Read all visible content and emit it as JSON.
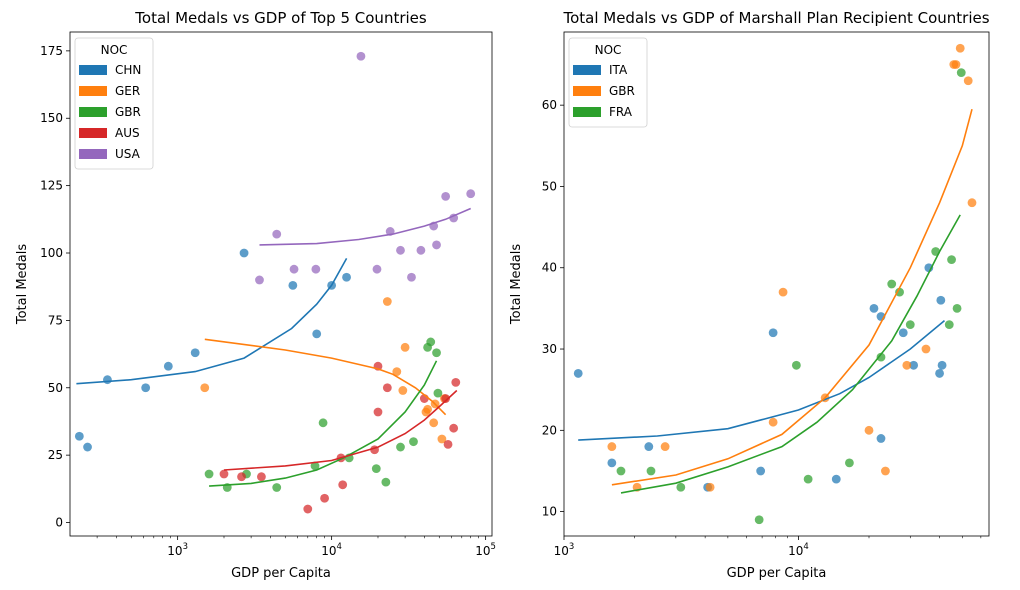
{
  "chart_data": [
    {
      "type": "scatter",
      "title": "Total Medals vs GDP of Top 5 Countries",
      "xlabel": "GDP per Capita",
      "ylabel": "Total Medals",
      "xscale": "log",
      "xlim": [
        200,
        110000
      ],
      "ylim": [
        -5,
        182
      ],
      "xticks": [
        {
          "value": 1000,
          "base": "10",
          "exp": "3"
        },
        {
          "value": 10000,
          "base": "10",
          "exp": "4"
        },
        {
          "value": 100000,
          "base": "10",
          "exp": "5"
        }
      ],
      "yticks": [
        0,
        25,
        50,
        75,
        100,
        125,
        150,
        175
      ],
      "legend": {
        "title": "NOC",
        "position": "top-left"
      },
      "series": [
        {
          "name": "CHN",
          "color": "#1f77b4",
          "points": [
            [
              230,
              32
            ],
            [
              260,
              28
            ],
            [
              350,
              53
            ],
            [
              620,
              50
            ],
            [
              870,
              58
            ],
            [
              1300,
              63
            ],
            [
              2700,
              100
            ],
            [
              5600,
              88
            ],
            [
              8000,
              70
            ],
            [
              10000,
              88
            ],
            [
              12500,
              91
            ]
          ],
          "trend": [
            [
              220,
              51.5
            ],
            [
              500,
              53
            ],
            [
              1300,
              56
            ],
            [
              2700,
              61
            ],
            [
              5500,
              72
            ],
            [
              8000,
              81
            ],
            [
              10000,
              88
            ],
            [
              12500,
              98
            ]
          ]
        },
        {
          "name": "GER",
          "color": "#ff7f0e",
          "points": [
            [
              1500,
              50
            ],
            [
              23000,
              82
            ],
            [
              26500,
              56
            ],
            [
              29000,
              49
            ],
            [
              30000,
              65
            ],
            [
              41000,
              41
            ],
            [
              42000,
              42
            ],
            [
              46000,
              37
            ],
            [
              47000,
              44
            ],
            [
              52000,
              31
            ],
            [
              54000,
              46
            ]
          ],
          "trend": [
            [
              1500,
              68
            ],
            [
              5000,
              64
            ],
            [
              10000,
              61
            ],
            [
              20000,
              57
            ],
            [
              25000,
              55
            ],
            [
              35000,
              50
            ],
            [
              45000,
              45
            ],
            [
              55000,
              40
            ]
          ]
        },
        {
          "name": "GBR",
          "color": "#2ca02c",
          "points": [
            [
              1600,
              18
            ],
            [
              2100,
              13
            ],
            [
              2800,
              18
            ],
            [
              4400,
              13
            ],
            [
              7800,
              21
            ],
            [
              8800,
              37
            ],
            [
              13000,
              24
            ],
            [
              19500,
              20
            ],
            [
              22500,
              15
            ],
            [
              28000,
              28
            ],
            [
              34000,
              30
            ],
            [
              42000,
              65
            ],
            [
              44000,
              67
            ],
            [
              48000,
              63
            ],
            [
              49000,
              48
            ]
          ],
          "trend": [
            [
              1600,
              13.5
            ],
            [
              3000,
              14.5
            ],
            [
              5000,
              16.5
            ],
            [
              8000,
              19.5
            ],
            [
              12000,
              24
            ],
            [
              20000,
              31
            ],
            [
              30000,
              41
            ],
            [
              40000,
              51
            ],
            [
              48000,
              60
            ]
          ]
        },
        {
          "name": "AUS",
          "color": "#d62728",
          "points": [
            [
              2000,
              18
            ],
            [
              2600,
              17
            ],
            [
              3500,
              17
            ],
            [
              7000,
              5
            ],
            [
              9000,
              9
            ],
            [
              11500,
              24
            ],
            [
              11800,
              14
            ],
            [
              19000,
              27
            ],
            [
              20000,
              58
            ],
            [
              20000,
              41
            ],
            [
              23000,
              50
            ],
            [
              40000,
              46
            ],
            [
              55000,
              46
            ],
            [
              57000,
              29
            ],
            [
              62000,
              35
            ],
            [
              64000,
              52
            ]
          ],
          "trend": [
            [
              2000,
              19.5
            ],
            [
              5000,
              21
            ],
            [
              10000,
              23
            ],
            [
              20000,
              28
            ],
            [
              30000,
              33
            ],
            [
              40000,
              38
            ],
            [
              50000,
              43
            ],
            [
              65000,
              49
            ]
          ]
        },
        {
          "name": "USA",
          "color": "#9467bd",
          "points": [
            [
              3400,
              90
            ],
            [
              4400,
              107
            ],
            [
              5700,
              94
            ],
            [
              7900,
              94
            ],
            [
              15500,
              173
            ],
            [
              19700,
              94
            ],
            [
              24000,
              108
            ],
            [
              28000,
              101
            ],
            [
              33000,
              91
            ],
            [
              38000,
              101
            ],
            [
              46000,
              110
            ],
            [
              48000,
              103
            ],
            [
              55000,
              121
            ],
            [
              62000,
              113
            ],
            [
              80000,
              122
            ]
          ],
          "trend": [
            [
              3400,
              103
            ],
            [
              8000,
              103.5
            ],
            [
              15000,
              105
            ],
            [
              25000,
              107
            ],
            [
              40000,
              110
            ],
            [
              55000,
              112.5
            ],
            [
              80000,
              116.5
            ]
          ]
        }
      ]
    },
    {
      "type": "scatter",
      "title": "Total Medals vs GDP of Marshall Plan Recipient Countries",
      "xlabel": "GDP per Capita",
      "ylabel": "Total Medals",
      "xscale": "log",
      "xlim": [
        1000,
        65000
      ],
      "ylim": [
        7,
        69
      ],
      "xticks": [
        {
          "value": 1000,
          "base": "10",
          "exp": "3"
        },
        {
          "value": 10000,
          "base": "10",
          "exp": "4"
        }
      ],
      "yticks": [
        10,
        20,
        30,
        40,
        50,
        60
      ],
      "legend": {
        "title": "NOC",
        "position": "top-left"
      },
      "series": [
        {
          "name": "ITA",
          "color": "#1f77b4",
          "points": [
            [
              1150,
              27
            ],
            [
              1600,
              16
            ],
            [
              2300,
              18
            ],
            [
              4100,
              13
            ],
            [
              6900,
              15
            ],
            [
              7800,
              32
            ],
            [
              14500,
              14
            ],
            [
              21000,
              35
            ],
            [
              22500,
              34
            ],
            [
              22500,
              19
            ],
            [
              28000,
              32
            ],
            [
              31000,
              28
            ],
            [
              36000,
              40
            ],
            [
              40000,
              27
            ],
            [
              40500,
              36
            ],
            [
              41000,
              28
            ]
          ],
          "trend": [
            [
              1150,
              18.8
            ],
            [
              2500,
              19.3
            ],
            [
              5000,
              20.2
            ],
            [
              10000,
              22.5
            ],
            [
              15000,
              24.5
            ],
            [
              20000,
              26.5
            ],
            [
              30000,
              30
            ],
            [
              42000,
              33.5
            ]
          ]
        },
        {
          "name": "GBR",
          "color": "#ff7f0e",
          "points": [
            [
              1600,
              18
            ],
            [
              2050,
              13
            ],
            [
              2700,
              18
            ],
            [
              4200,
              13
            ],
            [
              7800,
              21
            ],
            [
              8600,
              37
            ],
            [
              13000,
              24
            ],
            [
              20000,
              20
            ],
            [
              23500,
              15
            ],
            [
              29000,
              28
            ],
            [
              35000,
              30
            ],
            [
              46000,
              65
            ],
            [
              47000,
              65
            ],
            [
              49000,
              67
            ],
            [
              53000,
              63
            ],
            [
              55000,
              48
            ]
          ],
          "trend": [
            [
              1600,
              13.3
            ],
            [
              3000,
              14.5
            ],
            [
              5000,
              16.5
            ],
            [
              8500,
              19.5
            ],
            [
              13000,
              24
            ],
            [
              20000,
              30.5
            ],
            [
              30000,
              40
            ],
            [
              40000,
              48
            ],
            [
              50000,
              55
            ],
            [
              55000,
              59.5
            ]
          ]
        },
        {
          "name": "FRA",
          "color": "#2ca02c",
          "points": [
            [
              1750,
              15
            ],
            [
              2350,
              15
            ],
            [
              3150,
              13
            ],
            [
              6800,
              9
            ],
            [
              9800,
              28
            ],
            [
              11000,
              14
            ],
            [
              16500,
              16
            ],
            [
              22500,
              29
            ],
            [
              25000,
              38
            ],
            [
              27000,
              37
            ],
            [
              30000,
              33
            ],
            [
              38500,
              42
            ],
            [
              44000,
              33
            ],
            [
              45000,
              41
            ],
            [
              47500,
              35
            ],
            [
              49500,
              64
            ]
          ],
          "trend": [
            [
              1750,
              12.3
            ],
            [
              3000,
              13.5
            ],
            [
              5000,
              15.5
            ],
            [
              8500,
              18
            ],
            [
              12000,
              21
            ],
            [
              17000,
              25
            ],
            [
              25000,
              31
            ],
            [
              32000,
              36.5
            ],
            [
              40000,
              42
            ],
            [
              49000,
              46.5
            ]
          ]
        }
      ]
    }
  ]
}
